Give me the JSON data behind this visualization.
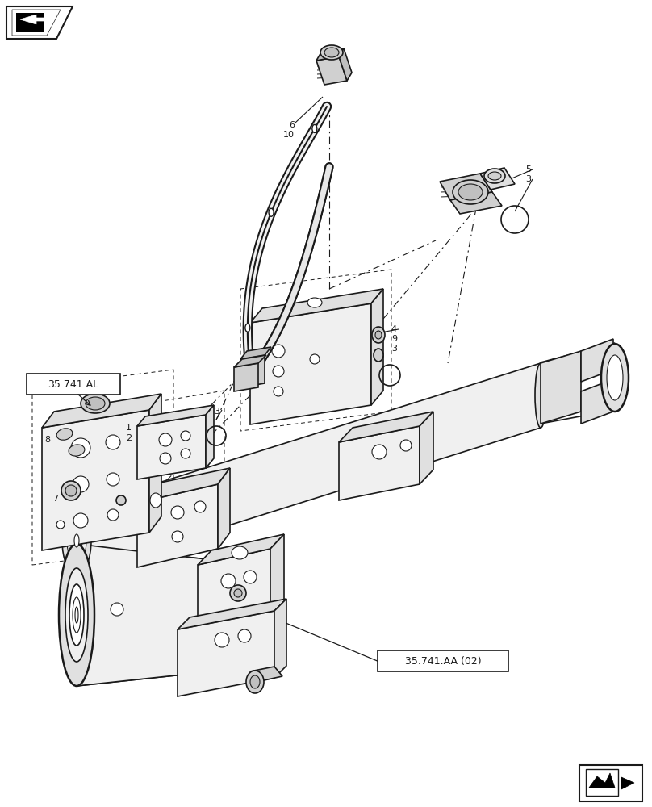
{
  "bg_color": "#ffffff",
  "line_color": "#1a1a1a",
  "fg": "#1a1a1a",
  "gray1": "#f0f0f0",
  "gray2": "#e0e0e0",
  "gray3": "#d0d0d0",
  "gray4": "#c0c0c0",
  "gray5": "#b0b0b0"
}
